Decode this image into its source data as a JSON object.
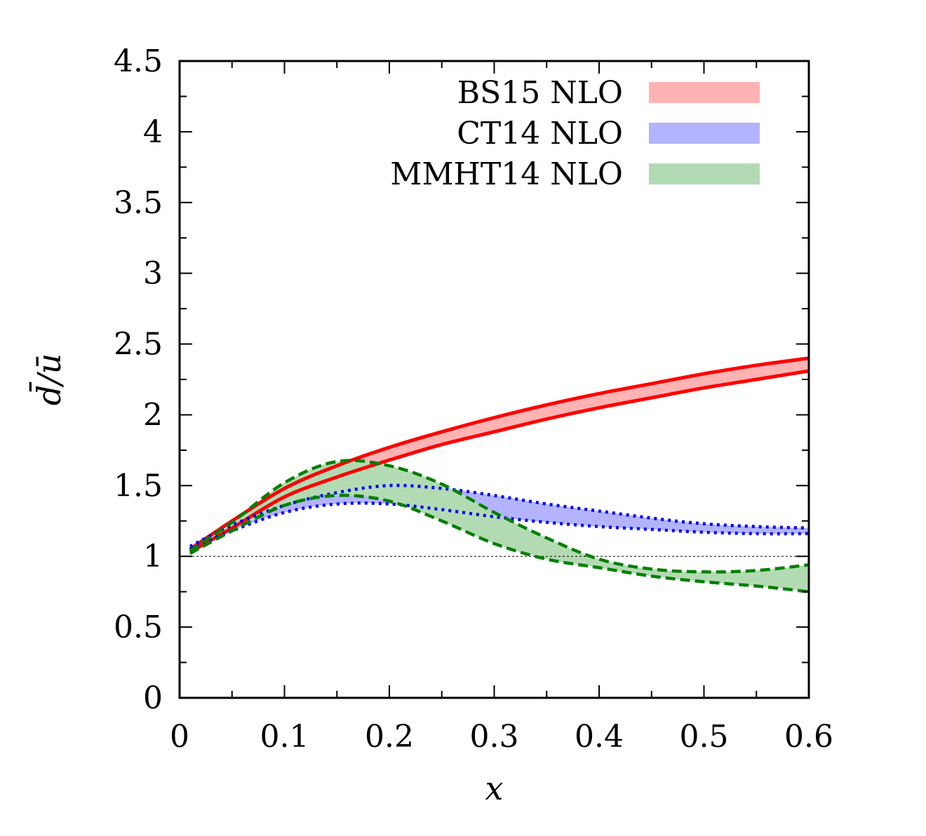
{
  "chart_data": {
    "type": "area",
    "xlabel": "x",
    "ylabel": "d̄/ū",
    "xlim": [
      0,
      0.6
    ],
    "ylim": [
      0,
      4.5
    ],
    "x_ticks": [
      "0",
      "0.1",
      "0.2",
      "0.3",
      "0.4",
      "0.5",
      "0.6"
    ],
    "y_ticks": [
      "0",
      "0.5",
      "1",
      "1.5",
      "2",
      "2.5",
      "3",
      "3.5",
      "4",
      "4.5"
    ],
    "grid": false,
    "legend": "top-right",
    "reference_line": {
      "y": 1
    },
    "series": [
      {
        "name": "BS15 NLO",
        "fill": "#ffb3b3",
        "edge": "#ff0000",
        "dash": "solid",
        "x": [
          0.01,
          0.05,
          0.1,
          0.15,
          0.2,
          0.25,
          0.3,
          0.35,
          0.4,
          0.45,
          0.5,
          0.55,
          0.6
        ],
        "upper": [
          1.05,
          1.25,
          1.48,
          1.64,
          1.77,
          1.88,
          1.98,
          2.07,
          2.15,
          2.22,
          2.29,
          2.35,
          2.4
        ],
        "lower": [
          1.03,
          1.2,
          1.42,
          1.56,
          1.68,
          1.79,
          1.88,
          1.97,
          2.05,
          2.12,
          2.19,
          2.25,
          2.31
        ]
      },
      {
        "name": "CT14 NLO",
        "fill": "#b3b3ff",
        "edge": "#0000ff",
        "dash": "dotted",
        "x": [
          0.01,
          0.05,
          0.1,
          0.15,
          0.2,
          0.25,
          0.3,
          0.35,
          0.4,
          0.45,
          0.5,
          0.55,
          0.6
        ],
        "upper": [
          1.07,
          1.22,
          1.36,
          1.45,
          1.5,
          1.48,
          1.43,
          1.37,
          1.32,
          1.27,
          1.23,
          1.21,
          1.2
        ],
        "lower": [
          1.05,
          1.18,
          1.31,
          1.37,
          1.37,
          1.33,
          1.28,
          1.24,
          1.21,
          1.19,
          1.17,
          1.16,
          1.16
        ]
      },
      {
        "name": "MMHT14 NLO",
        "fill": "#b3dbb3",
        "edge": "#008000",
        "dash": "dashed",
        "x": [
          0.01,
          0.05,
          0.1,
          0.15,
          0.2,
          0.25,
          0.3,
          0.35,
          0.4,
          0.45,
          0.5,
          0.55,
          0.6
        ],
        "upper": [
          1.04,
          1.24,
          1.52,
          1.67,
          1.64,
          1.51,
          1.31,
          1.13,
          0.98,
          0.91,
          0.89,
          0.9,
          0.94
        ],
        "lower": [
          1.02,
          1.18,
          1.36,
          1.43,
          1.39,
          1.25,
          1.09,
          0.98,
          0.92,
          0.86,
          0.82,
          0.79,
          0.75
        ]
      }
    ]
  }
}
